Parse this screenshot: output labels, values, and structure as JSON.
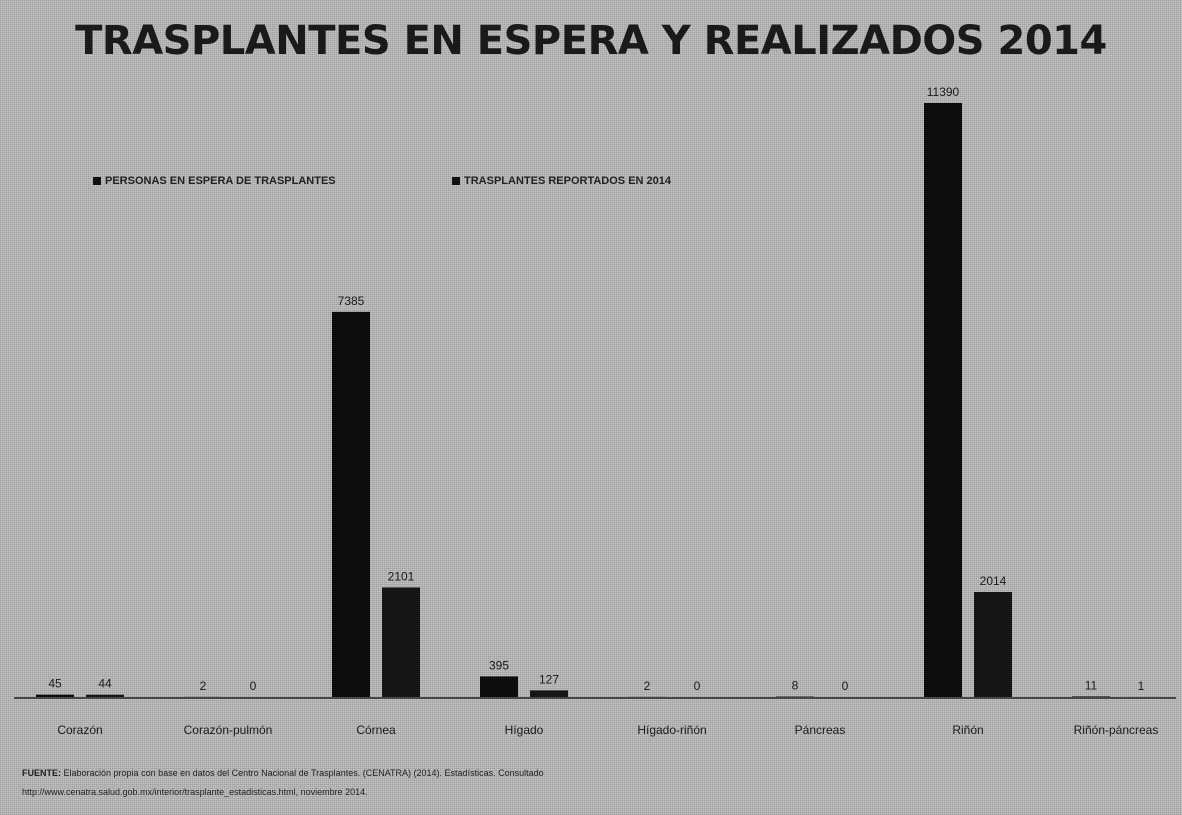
{
  "chart_data": {
    "type": "bar",
    "title": "TRASPLANTES EN ESPERA Y REALIZADOS  2014",
    "categories": [
      "Corazón",
      "Corazón-pulmón",
      "Córnea",
      "Hígado",
      "Hígado-riñón",
      "Páncreas",
      "Riñón",
      "Riñón-páncreas"
    ],
    "series": [
      {
        "name": "PERSONAS EN ESPERA DE TRASPLANTES",
        "values": [
          45,
          2,
          7385,
          395,
          2,
          8,
          11390,
          11
        ]
      },
      {
        "name": "TRASPLANTES REPORTADOS EN 2014",
        "values": [
          44,
          0,
          2101,
          127,
          0,
          0,
          2014,
          1
        ]
      }
    ],
    "data_labels": [
      [
        "45",
        "2",
        "7385",
        "395",
        "2",
        "8",
        "11390",
        "11"
      ],
      [
        "44",
        "0",
        "2101",
        "127",
        "0",
        "0",
        "2014",
        "1"
      ]
    ],
    "legend_position": "top-left",
    "grid": false,
    "ylim": [
      0,
      11390
    ],
    "colors": {
      "series1": "#0d0d0d",
      "series2": "#161616",
      "axis": "#222222"
    }
  },
  "footer": {
    "source_label": "FUENTE:",
    "source_text": "Elaboración propia con base en datos del Centro Nacional de Trasplantes. (CENATRA) (2014). Estadísticas. Consultado",
    "source_url": "http://www.cenatra.salud.gob.mx/interior/trasplante_estadisticas.html, noviembre 2014."
  }
}
